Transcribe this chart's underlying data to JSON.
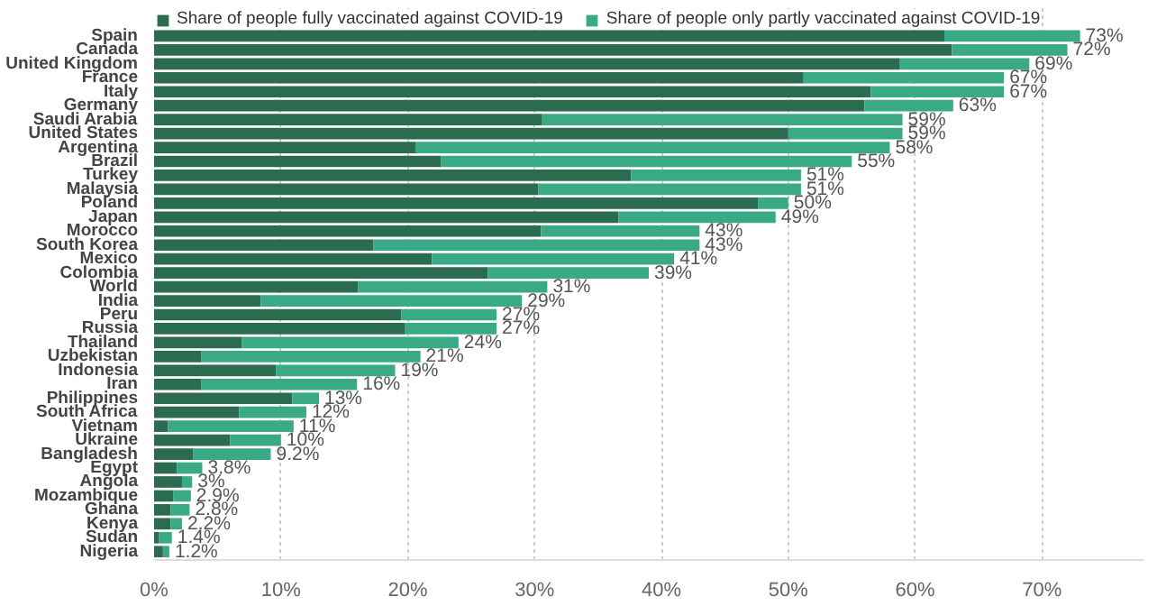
{
  "chart_data": {
    "type": "bar",
    "orientation": "horizontal",
    "stacked": true,
    "categories": [
      "Spain",
      "Canada",
      "United Kingdom",
      "France",
      "Italy",
      "Germany",
      "Saudi Arabia",
      "United States",
      "Argentina",
      "Brazil",
      "Turkey",
      "Malaysia",
      "Poland",
      "Japan",
      "Morocco",
      "South Korea",
      "Mexico",
      "Colombia",
      "World",
      "India",
      "Peru",
      "Russia",
      "Thailand",
      "Uzbekistan",
      "Indonesia",
      "Iran",
      "Philippines",
      "South Africa",
      "Vietnam",
      "Ukraine",
      "Bangladesh",
      "Egypt",
      "Angola",
      "Mozambique",
      "Ghana",
      "Kenya",
      "Sudan",
      "Nigeria"
    ],
    "series": [
      {
        "name": "Share of people fully vaccinated against COVID-19",
        "color": "#2b6b50",
        "values": [
          62.3,
          62.9,
          58.8,
          51.2,
          56.5,
          56,
          30.6,
          50,
          20.6,
          22.6,
          37.6,
          30.3,
          47.6,
          36.6,
          30.5,
          17.3,
          21.9,
          26.3,
          16.1,
          8.4,
          19.5,
          19.8,
          6.9,
          3.7,
          9.6,
          3.7,
          10.9,
          6.7,
          1.1,
          6,
          3.1,
          1.8,
          2.2,
          1.5,
          1.3,
          1.3,
          0.4,
          0.7
        ]
      },
      {
        "name": "Share of people only partly vaccinated against COVID-19",
        "color": "#3aa985",
        "values": [
          10.7,
          9.1,
          10.2,
          15.8,
          10.5,
          7,
          28.4,
          9,
          37.4,
          32.4,
          13.4,
          20.7,
          2.4,
          12.4,
          12.5,
          25.7,
          19.1,
          12.7,
          14.9,
          20.6,
          7.5,
          7.2,
          17.1,
          17.3,
          9.4,
          12.3,
          2.1,
          5.3,
          9.9,
          4,
          6.1,
          2,
          0.8,
          1.4,
          1.5,
          0.9,
          1,
          0.5
        ]
      }
    ],
    "totals": [
      "73%",
      "72%",
      "69%",
      "67%",
      "67%",
      "63%",
      "59%",
      "59%",
      "58%",
      "55%",
      "51%",
      "51%",
      "50%",
      "49%",
      "43%",
      "43%",
      "41%",
      "39%",
      "31%",
      "29%",
      "27%",
      "27%",
      "24%",
      "21%",
      "19%",
      "16%",
      "13%",
      "12%",
      "11%",
      "10%",
      "9.2%",
      "3.8%",
      "3%",
      "2.9%",
      "2.8%",
      "2.2%",
      "1.4%",
      "1.2%"
    ],
    "xlim": [
      0,
      78
    ],
    "xticks": [
      {
        "value": 0,
        "label": "0%"
      },
      {
        "value": 10,
        "label": "10%"
      },
      {
        "value": 20,
        "label": "20%"
      },
      {
        "value": 30,
        "label": "30%"
      },
      {
        "value": 40,
        "label": "40%"
      },
      {
        "value": 50,
        "label": "50%"
      },
      {
        "value": 60,
        "label": "60%"
      },
      {
        "value": 70,
        "label": "70%"
      }
    ],
    "grid": "x",
    "legend": "top left"
  }
}
